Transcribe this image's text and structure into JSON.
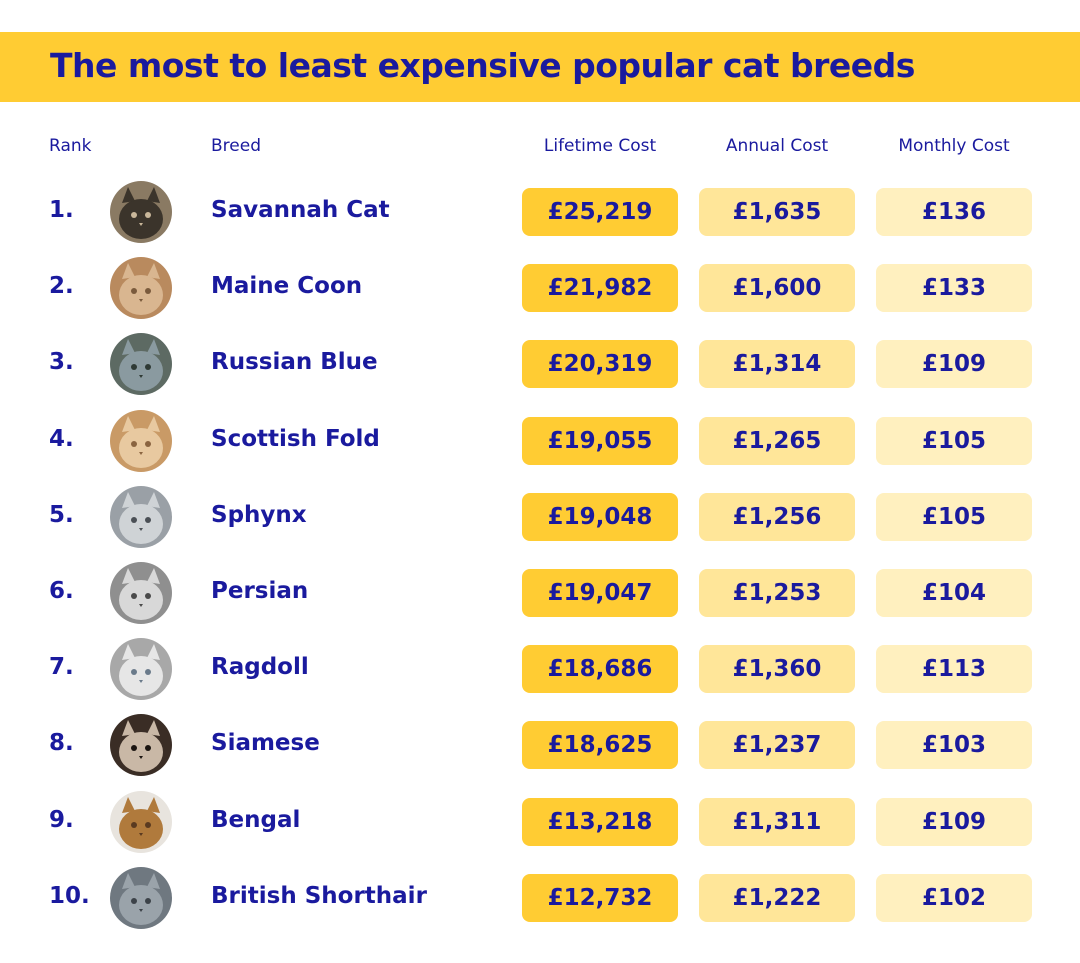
{
  "title": "The most to least expensive popular cat breeds",
  "headers": {
    "rank": "Rank",
    "breed": "Breed",
    "lifetime": "Lifetime Cost",
    "annual": "Annual Cost",
    "monthly": "Monthly Cost"
  },
  "colors": {
    "accent_yellow": "#ffcc33",
    "annual_fill": "#ffe699",
    "monthly_fill": "#fff0bf",
    "text_navy": "#1a1a9e"
  },
  "chart_data": {
    "type": "table",
    "title": "The most to least expensive popular cat breeds",
    "columns": [
      "Rank",
      "Breed",
      "Lifetime Cost",
      "Annual Cost",
      "Monthly Cost"
    ],
    "rows": [
      {
        "rank": "1.",
        "breed": "Savannah Cat",
        "lifetime": "£25,219",
        "annual": "£1,635",
        "monthly": "£136",
        "photo": "savannah-cat-photo"
      },
      {
        "rank": "2.",
        "breed": "Maine Coon",
        "lifetime": "£21,982",
        "annual": "£1,600",
        "monthly": "£133",
        "photo": "maine-coon-photo"
      },
      {
        "rank": "3.",
        "breed": "Russian Blue",
        "lifetime": "£20,319",
        "annual": "£1,314",
        "monthly": "£109",
        "photo": "russian-blue-photo"
      },
      {
        "rank": "4.",
        "breed": "Scottish Fold",
        "lifetime": "£19,055",
        "annual": "£1,265",
        "monthly": "£105",
        "photo": "scottish-fold-photo"
      },
      {
        "rank": "5.",
        "breed": "Sphynx",
        "lifetime": "£19,048",
        "annual": "£1,256",
        "monthly": "£105",
        "photo": "sphynx-photo"
      },
      {
        "rank": "6.",
        "breed": "Persian",
        "lifetime": "£19,047",
        "annual": "£1,253",
        "monthly": "£104",
        "photo": "persian-photo"
      },
      {
        "rank": "7.",
        "breed": "Ragdoll",
        "lifetime": "£18,686",
        "annual": "£1,360",
        "monthly": "£113",
        "photo": "ragdoll-photo"
      },
      {
        "rank": "8.",
        "breed": "Siamese",
        "lifetime": "£18,625",
        "annual": "£1,237",
        "monthly": "£103",
        "photo": "siamese-photo"
      },
      {
        "rank": "9.",
        "breed": "Bengal",
        "lifetime": "£13,218",
        "annual": "£1,311",
        "monthly": "£109",
        "photo": "bengal-photo"
      },
      {
        "rank": "10.",
        "breed": "British Shorthair",
        "lifetime": "£12,732",
        "annual": "£1,222",
        "monthly": "£102",
        "photo": "british-shorthair-photo"
      }
    ]
  }
}
